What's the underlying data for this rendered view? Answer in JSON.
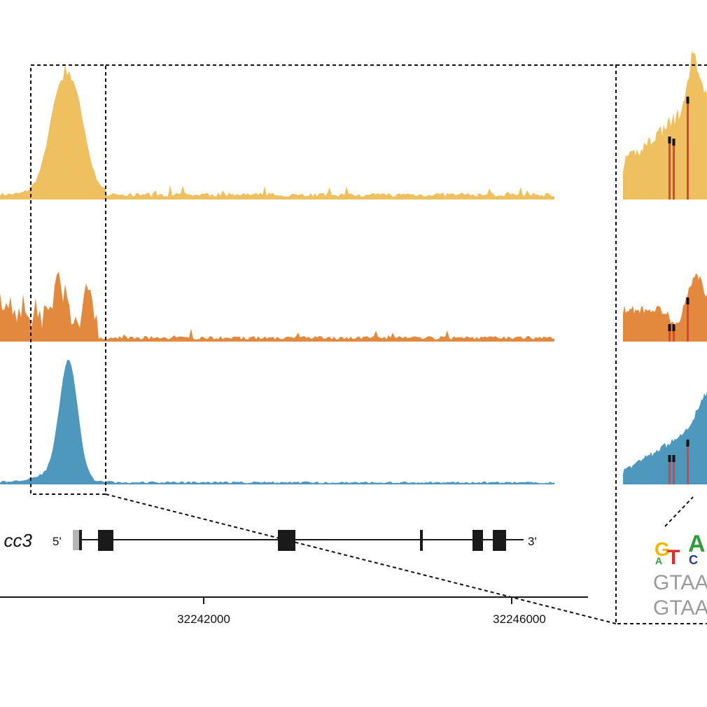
{
  "colors": {
    "track_1": "#EFC060",
    "track_2": "#E3893E",
    "track_3": "#4E97BD",
    "variant": "#D9453A",
    "exon": "#1a1a1a",
    "utr": "#b5b5b5",
    "seq_text": "#9a9a9a",
    "logo_G": "#F2B705",
    "logo_A": "#2E9E3B",
    "logo_T": "#D9302A",
    "logo_C": "#1F3D99"
  },
  "gene": {
    "label": "cc3",
    "five_prime_label": "5'",
    "three_prime_label": "3'"
  },
  "axis": {
    "ticks": [
      {
        "value": 32242000,
        "label": "32242000"
      },
      {
        "value": 32246000,
        "label": "32246000"
      }
    ]
  },
  "motif": {
    "logo_letters": [
      {
        "top": "G",
        "bottom": "A"
      },
      {
        "top": "T",
        "bottom": ""
      },
      {
        "top": "A",
        "bottom": "C"
      }
    ],
    "sequences": [
      "GTAA",
      "GTAA"
    ]
  },
  "tracks": [
    {
      "name": "",
      "color_key": "track_1"
    },
    {
      "name": "",
      "color_key": "track_2"
    },
    {
      "name": "",
      "color_key": "track_3"
    }
  ]
}
